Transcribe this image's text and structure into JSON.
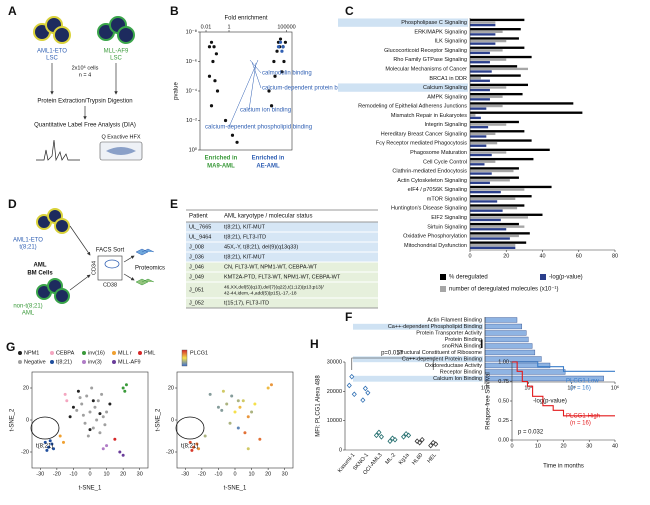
{
  "panel_labels": [
    "A",
    "B",
    "C",
    "D",
    "E",
    "F",
    "G",
    "H",
    "I"
  ],
  "panel_a": {
    "group_1": [
      "AML1-ETO",
      "LSC"
    ],
    "group_2": [
      "MLL-AF9",
      "LSC"
    ],
    "input": [
      "2x10⁶ cells",
      "n = 4"
    ],
    "step_1": "Protein Extraction/Trypsin Digestion",
    "step_2": "Quantitative Label Free Analysis (DIA)",
    "instrument": "Q Exactive HFX"
  },
  "panel_d": {
    "group_1": [
      "AML1-ETO",
      "t(8;21)"
    ],
    "source": [
      "AML",
      "BM Cells"
    ],
    "group_2": [
      "non-t(8;21)",
      "AML"
    ],
    "sort": "FACS Sort",
    "y_marker": "CD34",
    "x_marker": "CD38",
    "output": "Proteomics"
  },
  "panel_e": {
    "header": [
      "Patient",
      "AML karyotype / molecular status"
    ],
    "rows": [
      [
        "UL_7665",
        "t(8;21), KIT-MUT"
      ],
      [
        "UL_9464",
        "t(8;21), FLT3-ITD"
      ],
      [
        "J_008",
        "45X,-Y, t(8;21), del(9)(q13q33)"
      ],
      [
        "J_036",
        "t(8;21), KIT-MUT"
      ],
      [
        "J_046",
        "CN, FLT3-WT, NPM1-WT, CEBPA-WT"
      ],
      [
        "J_049",
        "KMT2A-PTD, FLT3-WT, NPM1-WT, CEBPA-WT"
      ],
      [
        "J_051",
        [
          "46,XX,del(5)(q13),del(7)(q22),t(1;12)(p13;p13)/",
          "42-44,idem,-4,add(5)(p15),-17,-18"
        ]
      ],
      [
        "J_052",
        "t(15;17), FLT3-ITD"
      ]
    ]
  },
  "chart_data": [
    {
      "type": "scatter",
      "title": "Fold enrichment",
      "ylabel": "pvalue",
      "xlog": true,
      "ylog": true,
      "xaxis_position": "top",
      "xlim": [
        0.003,
        300000
      ],
      "xticks": [
        0.01,
        1,
        100000
      ],
      "ylim": [
        1,
        1e-08
      ],
      "yticks": [
        {
          "value": 1,
          "label": "10⁰"
        },
        {
          "value": 0.01,
          "label": "10⁻²"
        },
        {
          "value": 0.0001,
          "label": "10⁻⁴"
        },
        {
          "value": 1e-06,
          "label": "10⁻⁶"
        },
        {
          "value": 1e-08,
          "label": "10⁻⁸"
        }
      ],
      "series": [
        {
          "color": "#111111",
          "x": [
            0.02,
            0.03,
            0.05,
            0.04,
            0.08,
            0.02,
            0.06,
            0.1,
            0.03,
            0.5,
            2,
            5,
            3000,
            8000,
            20000,
            50000,
            30000,
            15000,
            60000,
            40000,
            10000,
            25000,
            80000,
            5000
          ],
          "y": [
            1e-07,
            5e-08,
            1e-07,
            1e-06,
            3e-07,
            1e-05,
            2e-05,
            0.0001,
            0.001,
            0.01,
            0.1,
            0.3,
            0.0001,
            1e-06,
            5e-08,
            1e-07,
            3e-08,
            2e-07,
            1e-06,
            5e-06,
            1e-05,
            1e-07,
            5e-08,
            0.001
          ]
        },
        {
          "color": "#2f5fb3",
          "x": [
            20000,
            30000,
            40000,
            50000
          ],
          "y": [
            1e-07,
            5e-08,
            2e-07,
            1e-07
          ]
        }
      ],
      "annotations": [
        {
          "text": "calmodulin binding",
          "color": "#2f5fb3"
        },
        {
          "text": "calcium-dependent protein binding",
          "color": "#2f5fb3"
        },
        {
          "text": "calcium ion binding",
          "color": "#2f5fb3"
        },
        {
          "text": "calcium-dependent phospholipid binding",
          "color": "#2f5fb3"
        },
        {
          "text": "Enriched in",
          "color": "#3a9a3a"
        },
        {
          "text": "MA9-AML",
          "color": "#3a9a3a"
        },
        {
          "text": "Enriched in",
          "color": "#2f5fb3"
        },
        {
          "text": "AE-AML",
          "color": "#2f5fb3"
        }
      ]
    },
    {
      "type": "bar",
      "orientation": "horizontal",
      "xlim": [
        0,
        80
      ],
      "xticks": [
        0,
        20,
        40,
        60,
        80
      ],
      "highlighted": [
        0,
        7
      ],
      "highlight_color": "#cfe2f3",
      "categories": [
        "Phospholipase C Signaling",
        "ERK/MAPK Signaling",
        "ILK Signaling",
        "Glucocorticoid Receptor Signaling",
        "Rho Family GTPase Signaling",
        "Molecular Mechanisms of Cancer",
        "BRCA1 in DDR",
        "Calcium Signaling",
        "AMPK Signaling",
        "Remodeling of Epithelial Adherens Junctions",
        "Mismatch Repair in Eukaryotes",
        "Integrin Signaling",
        "Hereditary Breast Cancer Signaling",
        "Fcγ Receptor mediated Phagocytosis",
        "Phagosome Maturation",
        "Cell Cycle Control",
        "Clathrin-mediated Endocytosis",
        "Actin Cytoskeleton Signaling",
        "eIF4 / p70S6K Signaling",
        "mTOR Signaling",
        "Huntington's Disease Signaling",
        "EIF2 Signaling",
        "Sirtuin Signaling",
        "Oxidative Phosphorylation",
        "Mitochondrial Dysfunction"
      ],
      "series": [
        {
          "name": "% deregulated",
          "color": "#000000",
          "values": [
            30,
            28,
            27,
            30,
            34,
            26,
            28,
            32,
            29,
            57,
            62,
            27,
            30,
            34,
            44,
            35,
            27,
            27,
            45,
            34,
            30,
            40,
            27,
            33,
            31
          ]
        },
        {
          "name": "number of deregulated molecules (x10⁻¹)",
          "color": "#a6a6a6",
          "values": [
            14,
            18,
            20,
            18,
            20,
            32,
            6,
            20,
            18,
            18,
            3,
            20,
            14,
            15,
            20,
            14,
            24,
            22,
            30,
            25,
            26,
            32,
            30,
            27,
            25
          ]
        },
        {
          "name": "-log(p-value)",
          "color": "#2b3f8c",
          "values": [
            14,
            14,
            14,
            11,
            11,
            12,
            11,
            11,
            11,
            9,
            6,
            10,
            9,
            9,
            12,
            8,
            12,
            11,
            17,
            15,
            18,
            17,
            20,
            22,
            25
          ]
        }
      ]
    },
    {
      "type": "bar",
      "orientation": "horizontal",
      "xlog": true,
      "xlabel": "-log(p-value)",
      "xlim": [
        1,
        1000000
      ],
      "xticks": [
        {
          "value": 1,
          "label": "10⁰"
        },
        {
          "value": 100,
          "label": "10²"
        },
        {
          "value": 10000,
          "label": "10⁴"
        },
        {
          "value": 1000000,
          "label": "10⁶"
        }
      ],
      "highlighted": [
        1,
        6,
        9
      ],
      "highlight_color": "#cfe2f3",
      "categories": [
        "Actin Filament Binding",
        "Ca++-dependent Phospholipid Binding",
        "Protein Transporter Activity",
        "Protein Binding",
        "snoRNA Binding",
        "Structural Constituent of Ribosome",
        "Ca++-dependent Protein Binding",
        "Oxidoreductase Activity",
        "Receptor Binding",
        "Calcium Ion Binding"
      ],
      "series": [
        {
          "color": "#8fb4e3",
          "edgecolor": "#2c4a8a",
          "values": [
            30,
            50,
            80,
            100,
            150,
            200,
            400,
            1000,
            5000,
            300000
          ]
        }
      ]
    },
    {
      "type": "scatter",
      "xlabel": "t-SNE_1",
      "ylabel": "t-SNE_2",
      "xlim": [
        -35,
        35
      ],
      "xticks": [
        -30,
        -20,
        -10,
        0,
        10,
        20,
        30
      ],
      "ylim": [
        -30,
        30
      ],
      "yticks": [
        -20,
        0,
        20
      ],
      "series": [
        {
          "name": "Negative",
          "color": "#a0a0a0",
          "x": [
            -5,
            -2,
            0,
            3,
            5,
            8,
            -8,
            -3,
            2,
            6,
            10,
            -6,
            1,
            4,
            -1,
            7,
            9,
            -4
          ],
          "y": [
            10,
            15,
            5,
            8,
            12,
            2,
            6,
            -2,
            -5,
            -8,
            5,
            14,
            20,
            0,
            -10,
            16,
            -3,
            3
          ]
        },
        {
          "name": "NPM1",
          "color": "#222222",
          "x": [
            -10,
            -7,
            2,
            12,
            -12,
            0,
            6
          ],
          "y": [
            8,
            18,
            12,
            10,
            2,
            -6,
            4
          ]
        },
        {
          "name": "CEBPA",
          "color": "#f4a6c0",
          "x": [
            -15,
            -14
          ],
          "y": [
            16,
            12
          ]
        },
        {
          "name": "inv(16)",
          "color": "#3a9a3a",
          "x": [
            20,
            22,
            21
          ],
          "y": [
            20,
            22,
            18
          ]
        },
        {
          "name": "MLL r",
          "color": "#f0a030",
          "x": [
            -18,
            -16
          ],
          "y": [
            -10,
            -14
          ]
        },
        {
          "name": "PML",
          "color": "#d62728",
          "x": [
            15
          ],
          "y": [
            -12
          ]
        },
        {
          "name": "t(8;21)",
          "color": "#1f4e9e",
          "x": [
            -27,
            -25,
            -23,
            -26,
            -22,
            -24
          ],
          "y": [
            -14,
            -17,
            -15,
            -19,
            -18,
            -13
          ]
        },
        {
          "name": "inv(3)",
          "color": "#b07cc6",
          "x": [
            8,
            10
          ],
          "y": [
            -18,
            -16
          ]
        },
        {
          "name": "MLL-AF9",
          "color": "#6a3d9a",
          "x": [
            18,
            20
          ],
          "y": [
            -20,
            -22
          ]
        }
      ],
      "annotations": [
        {
          "text": "t(8;21)",
          "color": "#111111"
        }
      ]
    },
    {
      "type": "scatter",
      "xlabel": "t-SNE_1",
      "ylabel": "t-SNE_2",
      "xlim": [
        -35,
        35
      ],
      "xticks": [
        -30,
        -20,
        -10,
        0,
        10,
        20,
        30
      ],
      "ylim": [
        -30,
        30
      ],
      "yticks": [
        -20,
        0,
        20
      ],
      "colorbar_title": "PLCG1",
      "clim": [
        0,
        1
      ],
      "series": [
        {
          "x": [
            -27,
            -25,
            -23,
            -26,
            -22,
            -5,
            -2,
            0,
            3,
            5,
            8,
            -8,
            -3,
            2,
            6,
            10,
            -10,
            -7,
            2,
            12,
            20,
            22,
            15,
            -15,
            -18,
            8
          ],
          "y": [
            -14,
            -17,
            -15,
            -19,
            -18,
            10,
            15,
            5,
            8,
            12,
            2,
            6,
            -2,
            -5,
            -8,
            5,
            8,
            18,
            12,
            10,
            20,
            22,
            -12,
            16,
            -10,
            -18
          ],
          "values": [
            0.9,
            0.85,
            0.8,
            0.95,
            0.7,
            0.3,
            0.2,
            0.5,
            0.6,
            0.4,
            0.7,
            0.2,
            0.3,
            0.1,
            0.8,
            0.3,
            0.2,
            0.4,
            0.3,
            0.5,
            0.6,
            0.7,
            0.8,
            0.2,
            0.3,
            0.4
          ]
        }
      ],
      "annotations": [
        {
          "text": "t(8;21)",
          "color": "#111111"
        }
      ]
    },
    {
      "type": "strip",
      "ylabel": "MFI: PLCG1 Alexa 488",
      "ylim": [
        0,
        30000
      ],
      "yticks": [
        0,
        10000,
        20000,
        30000
      ],
      "categories": [
        "Kasumi-1",
        "SKNO-1",
        "OCI-AML3",
        "ML-2",
        "Kg1a",
        "HL60",
        "HEL"
      ],
      "colors": [
        "#2f6fb3",
        "#2f6fb3",
        "#1f6b6b",
        "#1f6b6b",
        "#1f6b6b",
        "#333333",
        "#333333"
      ],
      "values": [
        [
          22000,
          25000,
          19000
        ],
        [
          17000,
          21000,
          19500
        ],
        [
          5000,
          6000,
          4500
        ],
        [
          3000,
          4000,
          3500
        ],
        [
          4500,
          5500,
          5000
        ],
        [
          3000,
          2500,
          3500
        ],
        [
          1500,
          2500,
          2000
        ]
      ],
      "annotations": [
        {
          "text": "p=0.017",
          "color": "#111111"
        }
      ]
    },
    {
      "type": "line",
      "step": true,
      "xlabel": "Time in months",
      "ylabel": "Relapse-free Survival",
      "xlim": [
        0,
        40
      ],
      "xticks": [
        0,
        10,
        20,
        30,
        40
      ],
      "ylim": [
        0,
        1
      ],
      "yticks": [
        {
          "value": 0,
          "label": "0.00"
        },
        0.25,
        {
          "value": 0.5,
          "label": "0.50"
        },
        0.75,
        {
          "value": 1,
          "label": "1.00"
        }
      ],
      "series": [
        {
          "name": "PLCG1-Low",
          "n_label": "(n = 16)",
          "color": "#3a7dc9",
          "x": [
            0,
            5,
            10,
            15,
            20,
            25,
            30,
            40
          ],
          "values": [
            1,
            1,
            0.94,
            0.94,
            0.88,
            0.88,
            0.88,
            0.88
          ]
        },
        {
          "name": "PLCG1-High",
          "n_label": "(n = 16)",
          "color": "#e31a1c",
          "x": [
            0,
            2,
            4,
            6,
            8,
            12,
            16,
            20,
            40
          ],
          "values": [
            1,
            0.88,
            0.75,
            0.69,
            0.56,
            0.44,
            0.38,
            0.31,
            0.31
          ]
        }
      ],
      "annotations": [
        {
          "text": "p = 0.032",
          "color": "#111111"
        }
      ]
    }
  ]
}
